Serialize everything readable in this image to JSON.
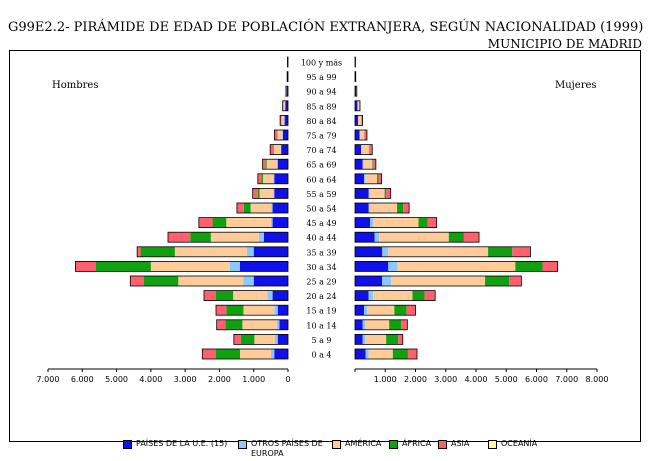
{
  "header": {
    "title": "G99E2.2- PIRÁMIDE DE EDAD DE POBLACIÓN EXTRANJERA, SEGÚN NACIONALIDAD (1999)",
    "subtitle": "MUNICIPIO DE MADRID"
  },
  "chart_data": {
    "type": "population-pyramid (stacked horizontal bar)",
    "title": "G99E2.2- PIRÁMIDE DE EDAD DE POBLACIÓN EXTRANJERA, SEGÚN NACIONALIDAD (1999)",
    "subtitle": "MUNICIPIO DE MADRID",
    "left_label": "Hombres",
    "right_label": "Mujeres",
    "xlim_left": [
      0,
      7000
    ],
    "xlim_right": [
      0,
      8000
    ],
    "x_ticks_left": [
      "7.000",
      "6.000",
      "5.000",
      "4.000",
      "3.000",
      "2.000",
      "1.000",
      "0"
    ],
    "x_ticks_right": [
      "1.000",
      "2.000",
      "3.000",
      "4.000",
      "5.000",
      "6.000",
      "7.000",
      "8.000"
    ],
    "categories": [
      "0 a 4",
      "5 a 9",
      "10 a 14",
      "15 a 19",
      "20 a 24",
      "25 a 29",
      "30 a 34",
      "35 a 39",
      "40 a 44",
      "45 a 49",
      "50 a 54",
      "55 a 59",
      "60 a 64",
      "65 a 69",
      "70 a 74",
      "75 a 79",
      "80 a 84",
      "85 a 89",
      "90 a 94",
      "95 a 99",
      "100 y más"
    ],
    "legend_position": "bottom",
    "series": [
      {
        "name": "PAÍSES DE LA U.E. (15)",
        "color": "#1010e8",
        "hombres": [
          400,
          300,
          250,
          300,
          450,
          1000,
          1400,
          1000,
          700,
          450,
          450,
          400,
          400,
          300,
          200,
          150,
          100,
          80,
          40,
          15,
          10
        ],
        "mujeres": [
          350,
          250,
          250,
          300,
          450,
          900,
          1100,
          900,
          650,
          500,
          450,
          450,
          300,
          250,
          200,
          150,
          100,
          80,
          40,
          15,
          10
        ]
      },
      {
        "name": "OTROS PAÍSES DE EUROPA",
        "color": "#8cc8ff",
        "hombres": [
          100,
          80,
          80,
          100,
          150,
          300,
          300,
          200,
          150,
          50,
          40,
          30,
          30,
          20,
          10,
          10,
          10,
          5,
          0,
          0,
          0
        ],
        "mujeres": [
          100,
          80,
          80,
          100,
          150,
          300,
          300,
          200,
          150,
          100,
          40,
          30,
          30,
          20,
          10,
          10,
          10,
          5,
          0,
          0,
          0
        ]
      },
      {
        "name": "AMÉRICA",
        "color": "#ffcc99",
        "hombres": [
          900,
          600,
          1000,
          900,
          1000,
          1900,
          2300,
          2100,
          1400,
          1300,
          600,
          400,
          300,
          300,
          200,
          150,
          80,
          50,
          10,
          5,
          5
        ],
        "mujeres": [
          800,
          700,
          800,
          900,
          1300,
          3100,
          3900,
          3300,
          2300,
          1500,
          900,
          500,
          400,
          300,
          250,
          150,
          100,
          60,
          10,
          5,
          5
        ]
      },
      {
        "name": "ÁFRICA",
        "color": "#10a010",
        "hombres": [
          700,
          400,
          500,
          500,
          500,
          1000,
          1600,
          1000,
          600,
          400,
          200,
          50,
          50,
          20,
          10,
          5,
          0,
          0,
          0,
          0,
          0
        ],
        "mujeres": [
          500,
          400,
          400,
          400,
          400,
          800,
          900,
          800,
          500,
          300,
          200,
          50,
          50,
          20,
          10,
          5,
          0,
          0,
          0,
          0,
          0
        ]
      },
      {
        "name": "ASIA",
        "color": "#ff6070",
        "hombres": [
          400,
          200,
          250,
          300,
          350,
          400,
          600,
          100,
          650,
          400,
          200,
          150,
          100,
          100,
          100,
          80,
          40,
          20,
          10,
          5,
          0
        ],
        "mujeres": [
          300,
          150,
          200,
          300,
          350,
          400,
          500,
          600,
          500,
          300,
          200,
          150,
          100,
          100,
          100,
          80,
          40,
          20,
          10,
          5,
          0
        ]
      },
      {
        "name": "OCEANÍA",
        "color": "#ffff99",
        "hombres": [
          0,
          0,
          0,
          0,
          0,
          0,
          0,
          0,
          0,
          0,
          0,
          0,
          0,
          0,
          0,
          0,
          0,
          0,
          0,
          0,
          0
        ],
        "mujeres": [
          0,
          0,
          0,
          0,
          0,
          0,
          0,
          0,
          0,
          0,
          0,
          0,
          0,
          0,
          0,
          0,
          0,
          0,
          0,
          0,
          0
        ]
      }
    ]
  }
}
